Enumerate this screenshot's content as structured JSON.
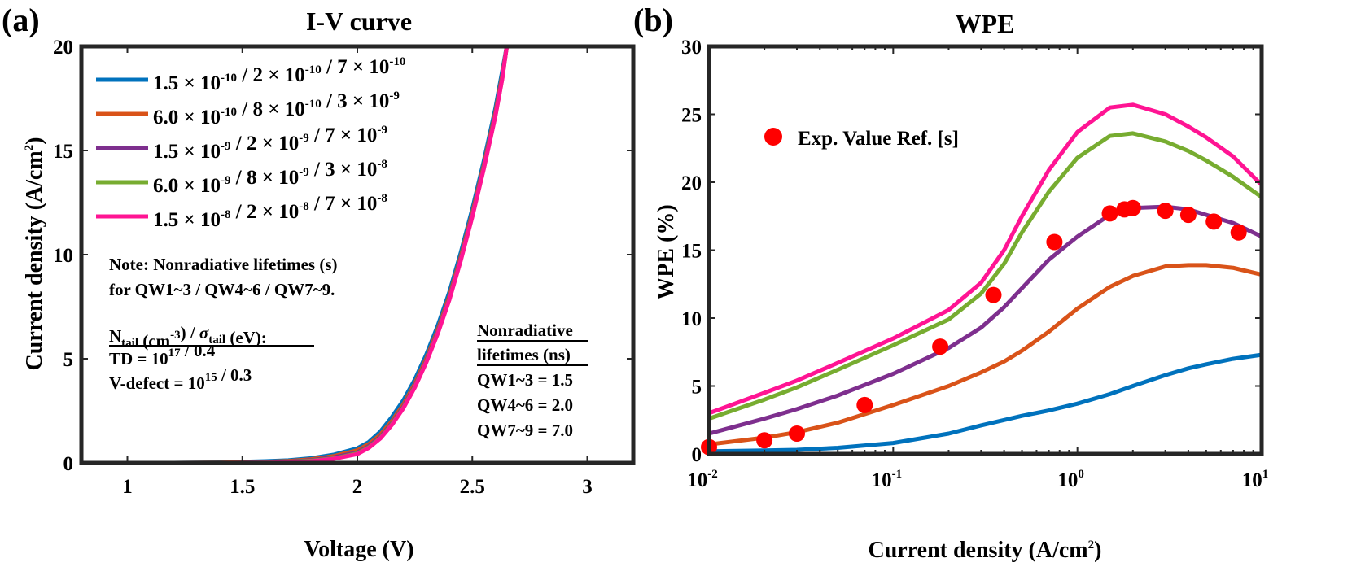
{
  "figure": {
    "panel_a_label": "(a)",
    "panel_b_label": "(b)"
  },
  "chart_data": [
    {
      "type": "line",
      "title": "I-V curve",
      "xlabel": "Voltage (V)",
      "ylabel_main": "Current density (A/cm",
      "ylabel_sup": "2",
      "ylabel_close": ")",
      "xlim": [
        0.8,
        3.2
      ],
      "ylim": [
        0,
        20
      ],
      "xticks": [
        1,
        1.5,
        2,
        2.5,
        3
      ],
      "xtick_labels": [
        "1",
        "1.5",
        "2",
        "2.5",
        "3"
      ],
      "yticks": [
        0,
        5,
        10,
        15,
        20
      ],
      "ytick_labels": [
        "0",
        "5",
        "10",
        "15",
        "20"
      ],
      "grid": false,
      "legend_position": "top-left",
      "x": [
        0.8,
        1.0,
        1.2,
        1.4,
        1.5,
        1.6,
        1.7,
        1.8,
        1.9,
        2.0,
        2.05,
        2.1,
        2.15,
        2.2,
        2.25,
        2.3,
        2.35,
        2.4,
        2.45,
        2.5,
        2.55,
        2.6,
        2.63,
        2.65
      ],
      "series": [
        {
          "values": [
            0,
            0,
            0,
            0.02,
            0.05,
            0.08,
            0.12,
            0.22,
            0.4,
            0.7,
            1.0,
            1.5,
            2.2,
            3.0,
            4.0,
            5.2,
            6.6,
            8.2,
            10.1,
            12.2,
            14.5,
            17.0,
            18.8,
            20.0
          ],
          "color": "#0072bd"
        },
        {
          "values": [
            0,
            0,
            0,
            0.01,
            0.03,
            0.05,
            0.09,
            0.17,
            0.33,
            0.6,
            0.9,
            1.35,
            2.0,
            2.8,
            3.8,
            5.0,
            6.4,
            8.0,
            9.9,
            12.0,
            14.3,
            16.8,
            18.6,
            20.0
          ],
          "color": "#d95319"
        },
        {
          "values": [
            0,
            0,
            0,
            0,
            0.01,
            0.03,
            0.06,
            0.13,
            0.27,
            0.5,
            0.8,
            1.25,
            1.9,
            2.7,
            3.7,
            4.9,
            6.3,
            7.9,
            9.8,
            11.9,
            14.2,
            16.7,
            18.5,
            20.0
          ],
          "color": "#7e2f8e"
        },
        {
          "values": [
            0,
            0,
            0,
            0,
            0,
            0.01,
            0.04,
            0.1,
            0.22,
            0.45,
            0.75,
            1.2,
            1.85,
            2.65,
            3.65,
            4.85,
            6.25,
            7.85,
            9.75,
            11.85,
            14.15,
            16.65,
            18.45,
            20.0
          ],
          "color": "#77ac30"
        },
        {
          "values": [
            0,
            0,
            0,
            0,
            0,
            0.01,
            0.03,
            0.08,
            0.2,
            0.42,
            0.72,
            1.17,
            1.82,
            2.62,
            3.62,
            4.82,
            6.22,
            7.82,
            9.72,
            11.82,
            14.12,
            16.62,
            18.42,
            20.0
          ],
          "color": "#ff1493"
        }
      ],
      "legend": [
        {
          "color": "#0072bd",
          "parts": [
            [
              "n",
              "1.5 × 10"
            ],
            [
              "s",
              "-10"
            ],
            [
              "n",
              " / 2 × 10"
            ],
            [
              "s",
              "-10"
            ],
            [
              "n",
              " / 7 × 10"
            ],
            [
              "s",
              "-10"
            ]
          ]
        },
        {
          "color": "#d95319",
          "parts": [
            [
              "n",
              "6.0 × 10"
            ],
            [
              "s",
              "-10"
            ],
            [
              "n",
              " / 8 × 10"
            ],
            [
              "s",
              "-10"
            ],
            [
              "n",
              " / 3 × 10"
            ],
            [
              "s",
              "-9"
            ]
          ]
        },
        {
          "color": "#7e2f8e",
          "parts": [
            [
              "n",
              "1.5 × 10"
            ],
            [
              "s",
              "-9"
            ],
            [
              "n",
              " / 2 × 10"
            ],
            [
              "s",
              "-9"
            ],
            [
              "n",
              " / 7 × 10"
            ],
            [
              "s",
              "-9"
            ]
          ]
        },
        {
          "color": "#77ac30",
          "parts": [
            [
              "n",
              "6.0 × 10"
            ],
            [
              "s",
              "-9"
            ],
            [
              "n",
              " / 8 × 10"
            ],
            [
              "s",
              "-9"
            ],
            [
              "n",
              " / 3 × 10"
            ],
            [
              "s",
              "-8"
            ]
          ]
        },
        {
          "color": "#ff1493",
          "parts": [
            [
              "n",
              "1.5 × 10"
            ],
            [
              "s",
              "-8"
            ],
            [
              "n",
              " / 2 × 10"
            ],
            [
              "s",
              "-8"
            ],
            [
              "n",
              " / 7 × 10"
            ],
            [
              "s",
              "-8"
            ]
          ]
        }
      ],
      "annotations": {
        "note_line1": "Note: Nonradiative lifetimes (s)",
        "note_line2": "for QW1~3 / QW4~6 / QW7~9.",
        "tail_header_parts": [
          [
            "n",
            "N"
          ],
          [
            "b",
            "tail"
          ],
          [
            "n",
            " (cm"
          ],
          [
            "s",
            "-3"
          ],
          [
            "n",
            ") / "
          ],
          [
            "g",
            "σ"
          ],
          [
            "b",
            "tail"
          ],
          [
            "n",
            " (eV):"
          ]
        ],
        "td_parts": [
          [
            "n",
            "TD = 10"
          ],
          [
            "s",
            "17"
          ],
          [
            "n",
            " / 0.4"
          ]
        ],
        "vdefect_parts": [
          [
            "n",
            "V-defect = 10"
          ],
          [
            "s",
            "15"
          ],
          [
            "n",
            " / 0.3"
          ]
        ],
        "nr_header1": "Nonradiative",
        "nr_header2": "lifetimes (ns)",
        "nr_line1": "QW1~3 = 1.5",
        "nr_line2": "QW4~6 = 2.0",
        "nr_line3": "QW7~9 = 7.0"
      }
    },
    {
      "type": "line",
      "title": "WPE",
      "xlabel_main": "Current density (A/cm",
      "xlabel_sup": "2",
      "xlabel_close": ")",
      "ylabel": "WPE (%)",
      "xscale": "log",
      "xlim": [
        0.01,
        10
      ],
      "ylim": [
        0,
        30
      ],
      "xticks": [
        0.01,
        0.1,
        1,
        10
      ],
      "xtick_labels": [
        [
          "10",
          "-2"
        ],
        [
          "10",
          "-1"
        ],
        [
          "10",
          "0"
        ],
        [
          "10",
          "1"
        ]
      ],
      "yticks": [
        0,
        5,
        10,
        15,
        20,
        25,
        30
      ],
      "ytick_labels": [
        "0",
        "5",
        "10",
        "15",
        "20",
        "25",
        "30"
      ],
      "grid": false,
      "legend_position": "top-left",
      "x": [
        0.01,
        0.02,
        0.03,
        0.05,
        0.1,
        0.2,
        0.3,
        0.4,
        0.5,
        0.7,
        1.0,
        1.5,
        2.0,
        3.0,
        4.0,
        5.0,
        7.0,
        10.0
      ],
      "series": [
        {
          "values": [
            0.2,
            0.25,
            0.3,
            0.45,
            0.8,
            1.5,
            2.1,
            2.5,
            2.8,
            3.2,
            3.7,
            4.4,
            5.0,
            5.8,
            6.3,
            6.6,
            7.0,
            7.3
          ],
          "color": "#0072bd"
        },
        {
          "values": [
            0.7,
            1.2,
            1.6,
            2.3,
            3.6,
            5.0,
            6.0,
            6.8,
            7.6,
            9.0,
            10.7,
            12.3,
            13.1,
            13.8,
            13.9,
            13.9,
            13.7,
            13.2
          ],
          "color": "#d95319"
        },
        {
          "values": [
            1.5,
            2.6,
            3.3,
            4.3,
            5.9,
            7.8,
            9.3,
            10.8,
            12.2,
            14.3,
            16.0,
            17.6,
            18.1,
            18.2,
            18.0,
            17.6,
            17.0,
            16.0
          ],
          "color": "#7e2f8e"
        },
        {
          "values": [
            2.6,
            4.0,
            4.9,
            6.2,
            8.0,
            9.9,
            11.8,
            14.0,
            16.3,
            19.3,
            21.8,
            23.4,
            23.6,
            23.0,
            22.3,
            21.6,
            20.4,
            18.9
          ],
          "color": "#77ac30"
        },
        {
          "values": [
            3.0,
            4.5,
            5.4,
            6.7,
            8.5,
            10.6,
            12.6,
            15.0,
            17.5,
            20.9,
            23.7,
            25.5,
            25.7,
            25.0,
            24.1,
            23.3,
            21.9,
            19.8
          ],
          "color": "#ff1493"
        }
      ],
      "experimental": {
        "name": "Exp. Value Ref. [s]",
        "color": "#ff0000",
        "x": [
          0.01,
          0.02,
          0.03,
          0.07,
          0.18,
          0.35,
          0.75,
          1.5,
          1.8,
          2.0,
          3.0,
          4.0,
          5.5,
          7.5
        ],
        "y": [
          0.5,
          1.0,
          1.5,
          3.6,
          7.9,
          11.7,
          15.6,
          17.7,
          18.0,
          18.1,
          17.9,
          17.6,
          17.1,
          16.3
        ]
      }
    }
  ]
}
